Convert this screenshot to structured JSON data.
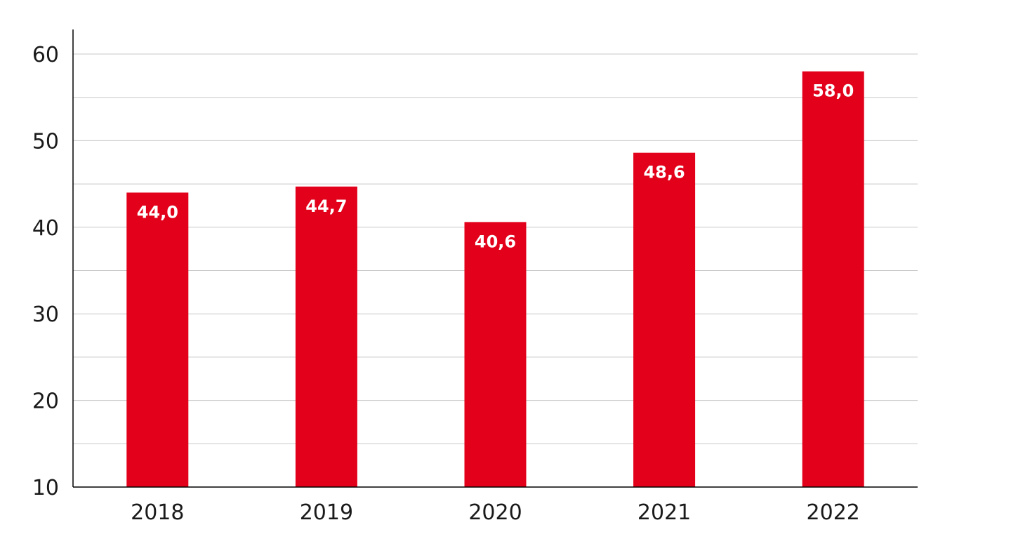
{
  "chart_data": {
    "type": "bar",
    "categories": [
      "2018",
      "2019",
      "2020",
      "2021",
      "2022"
    ],
    "values": [
      44.0,
      44.7,
      40.6,
      48.6,
      58.0
    ],
    "data_labels": [
      "44,0",
      "44,7",
      "40,6",
      "48,6",
      "58,0"
    ],
    "title": "",
    "xlabel": "",
    "ylabel": "",
    "ylim": [
      10,
      63
    ],
    "y_ticks": [
      10,
      20,
      30,
      40,
      50,
      60
    ],
    "y_tick_labels": [
      "10",
      "20",
      "30",
      "40",
      "50",
      "60"
    ],
    "minor_grid_step": 5,
    "grid": true,
    "legend": "none",
    "colors": {
      "bar": "#e2001a",
      "grid": "#c8c8c8",
      "axis": "#000000",
      "data_label": "#ffffff",
      "text": "#1a1a1a"
    }
  }
}
